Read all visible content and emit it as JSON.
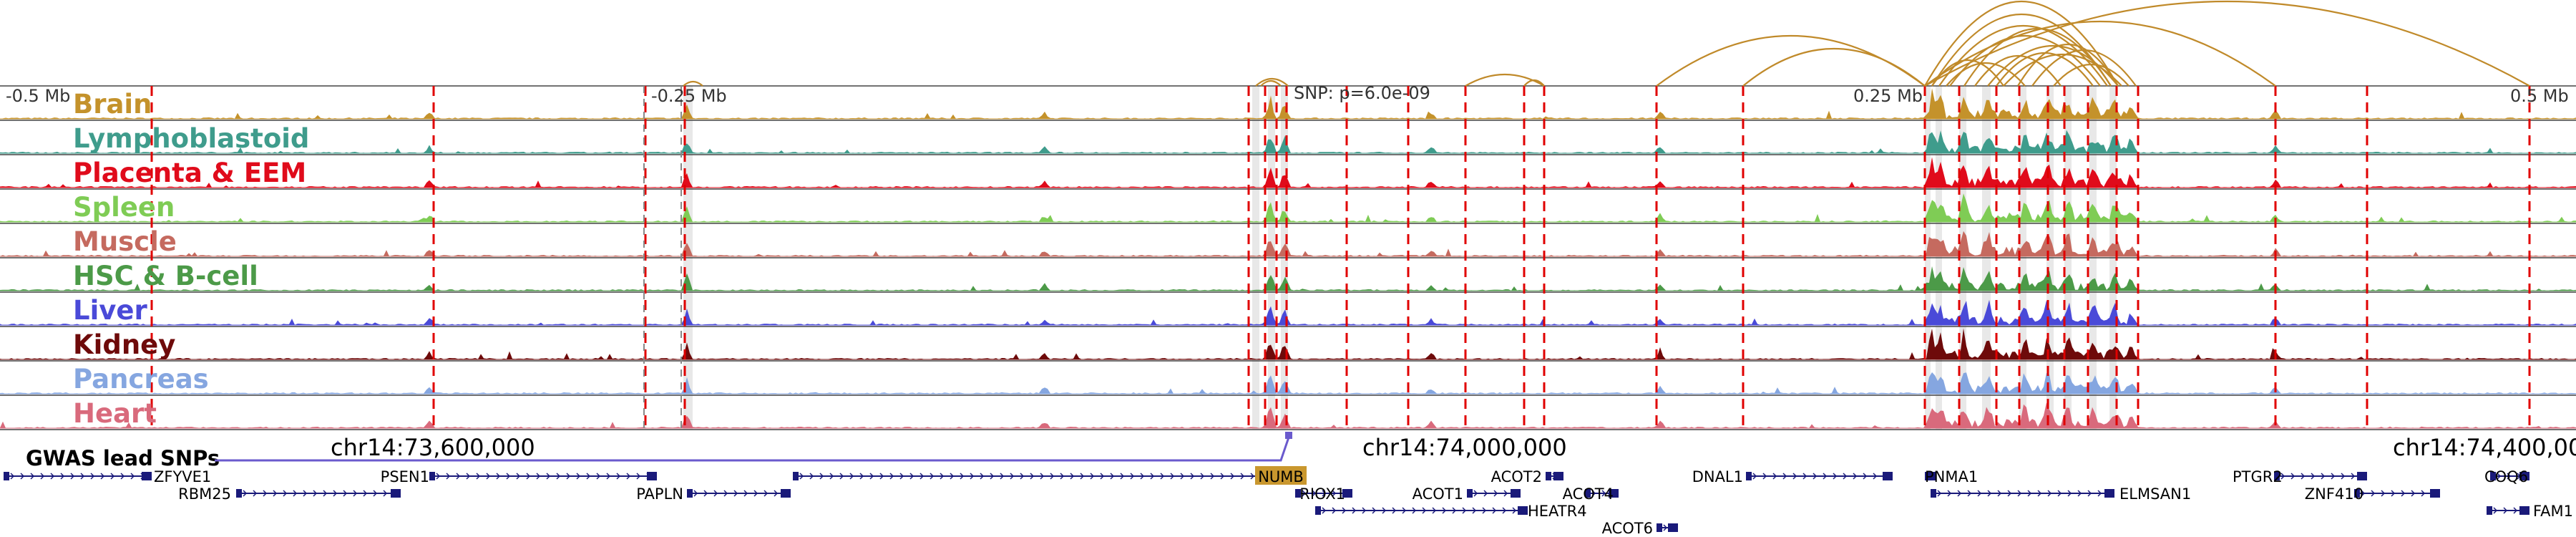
{
  "tracks": [
    {
      "name": "Brain",
      "color": "#c4922b"
    },
    {
      "name": "Lymphoblastoid",
      "color": "#3f9c8c"
    },
    {
      "name": "Placenta & EEM",
      "color": "#e00b1b"
    },
    {
      "name": "Spleen",
      "color": "#7fcc55"
    },
    {
      "name": "Muscle",
      "color": "#c56a5f"
    },
    {
      "name": "HSC & B-cell",
      "color": "#4c9a48"
    },
    {
      "name": "Liver",
      "color": "#4a4ad8"
    },
    {
      "name": "Kidney",
      "color": "#6e0a0a"
    },
    {
      "name": "Pancreas",
      "color": "#85a6e0"
    },
    {
      "name": "Heart",
      "color": "#d96a7c"
    }
  ],
  "position_labels": [
    "-0.5 Mb",
    "-0.25 Mb",
    "0.25 Mb",
    "0.5 Mb"
  ],
  "snp_label": "SNP: p=6.0e-09",
  "gwas": {
    "label": "GWAS lead SNPs",
    "color": "#6a5acd"
  },
  "coordinates": [
    "chr14:73,600,000",
    "chr14:74,000,000",
    "chr14:74,400,000"
  ],
  "genes": [
    "ZFYVE1",
    "RBM25",
    "PSEN1",
    "PAPLN",
    "NUMB",
    "RIOX1",
    "ACOT1",
    "ACOT2",
    "HEATR4",
    "ACOT4",
    "ACOT6",
    "DNAL1",
    "PNMA1",
    "ELMSAN1",
    "PTGR2",
    "ZNF410",
    "COQ6",
    "FAM1"
  ],
  "colors": {
    "loop": "#c08a2a",
    "gene": "#1a1a7a",
    "highlight": "#d8d8d8",
    "numb_fill": "#c9972e",
    "snp_line": "#e00000"
  }
}
